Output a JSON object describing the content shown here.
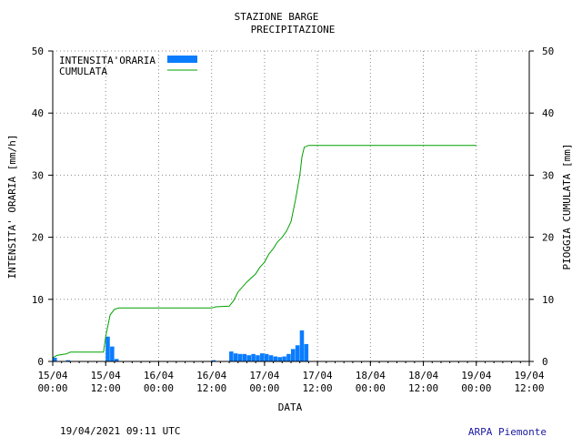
{
  "chart_data": {
    "type": "bar",
    "title": "STAZIONE BARGE",
    "subtitle": "PRECIPITAZIONE",
    "xlabel": "DATA",
    "ylabel_left": "INTENSITA' ORARIA [mm/h]",
    "ylabel_right": "PIOGGIA CUMULATA [mm]",
    "ylim": [
      0,
      50
    ],
    "yticks": [
      0,
      10,
      20,
      30,
      40,
      50
    ],
    "x_range_hours": [
      0,
      96
    ],
    "x_ticks": [
      {
        "h": 0,
        "l1": "15/04",
        "l2": "00:00"
      },
      {
        "h": 12,
        "l1": "15/04",
        "l2": "12:00"
      },
      {
        "h": 24,
        "l1": "16/04",
        "l2": "00:00"
      },
      {
        "h": 36,
        "l1": "16/04",
        "l2": "12:00"
      },
      {
        "h": 48,
        "l1": "17/04",
        "l2": "00:00"
      },
      {
        "h": 60,
        "l1": "17/04",
        "l2": "12:00"
      },
      {
        "h": 72,
        "l1": "18/04",
        "l2": "00:00"
      },
      {
        "h": 84,
        "l1": "18/04",
        "l2": "12:00"
      },
      {
        "h": 96,
        "l1": "19/04",
        "l2": "00:00"
      },
      {
        "h": 108,
        "l1": "19/04",
        "l2": "12:00"
      }
    ],
    "legend": {
      "placement": "top-left"
    },
    "series": [
      {
        "name": "INTENSITA'ORARIA",
        "kind": "bar",
        "color": "#0a7cff",
        "points": [
          [
            0,
            0.6
          ],
          [
            3,
            0.2
          ],
          [
            12,
            4.0
          ],
          [
            13,
            2.4
          ],
          [
            14,
            0.4
          ],
          [
            36,
            0.2
          ],
          [
            40,
            1.6
          ],
          [
            41,
            1.3
          ],
          [
            42,
            1.2
          ],
          [
            43,
            1.2
          ],
          [
            44,
            1.0
          ],
          [
            45,
            1.2
          ],
          [
            46,
            1.0
          ],
          [
            47,
            1.3
          ],
          [
            48,
            1.2
          ],
          [
            49,
            1.0
          ],
          [
            50,
            0.8
          ],
          [
            51,
            0.7
          ],
          [
            52,
            0.8
          ],
          [
            53,
            1.2
          ],
          [
            54,
            2.0
          ],
          [
            55,
            2.6
          ],
          [
            56,
            5.0
          ],
          [
            57,
            2.8
          ]
        ]
      },
      {
        "name": "CUMULATA",
        "kind": "line",
        "color": "#00a000",
        "points": [
          [
            0,
            0.6
          ],
          [
            1,
            1.0
          ],
          [
            3,
            1.2
          ],
          [
            4,
            1.5
          ],
          [
            11.5,
            1.5
          ],
          [
            12,
            4.0
          ],
          [
            13,
            7.5
          ],
          [
            14,
            8.4
          ],
          [
            15,
            8.6
          ],
          [
            36,
            8.6
          ],
          [
            37,
            8.8
          ],
          [
            40,
            8.9
          ],
          [
            41,
            9.8
          ],
          [
            42,
            11.2
          ],
          [
            44,
            12.8
          ],
          [
            46,
            14.1
          ],
          [
            47,
            15.2
          ],
          [
            48,
            16.0
          ],
          [
            49,
            17.3
          ],
          [
            50,
            18.2
          ],
          [
            51,
            19.3
          ],
          [
            52,
            20.0
          ],
          [
            53,
            21.0
          ],
          [
            54,
            22.5
          ],
          [
            55,
            26.0
          ],
          [
            56,
            30.0
          ],
          [
            56.5,
            33.0
          ],
          [
            57,
            34.5
          ],
          [
            58,
            34.8
          ],
          [
            96,
            34.8
          ]
        ]
      }
    ]
  },
  "footer": {
    "timestamp": "19/04/2021 09:11 UTC",
    "source": "ARPA Piemonte"
  }
}
